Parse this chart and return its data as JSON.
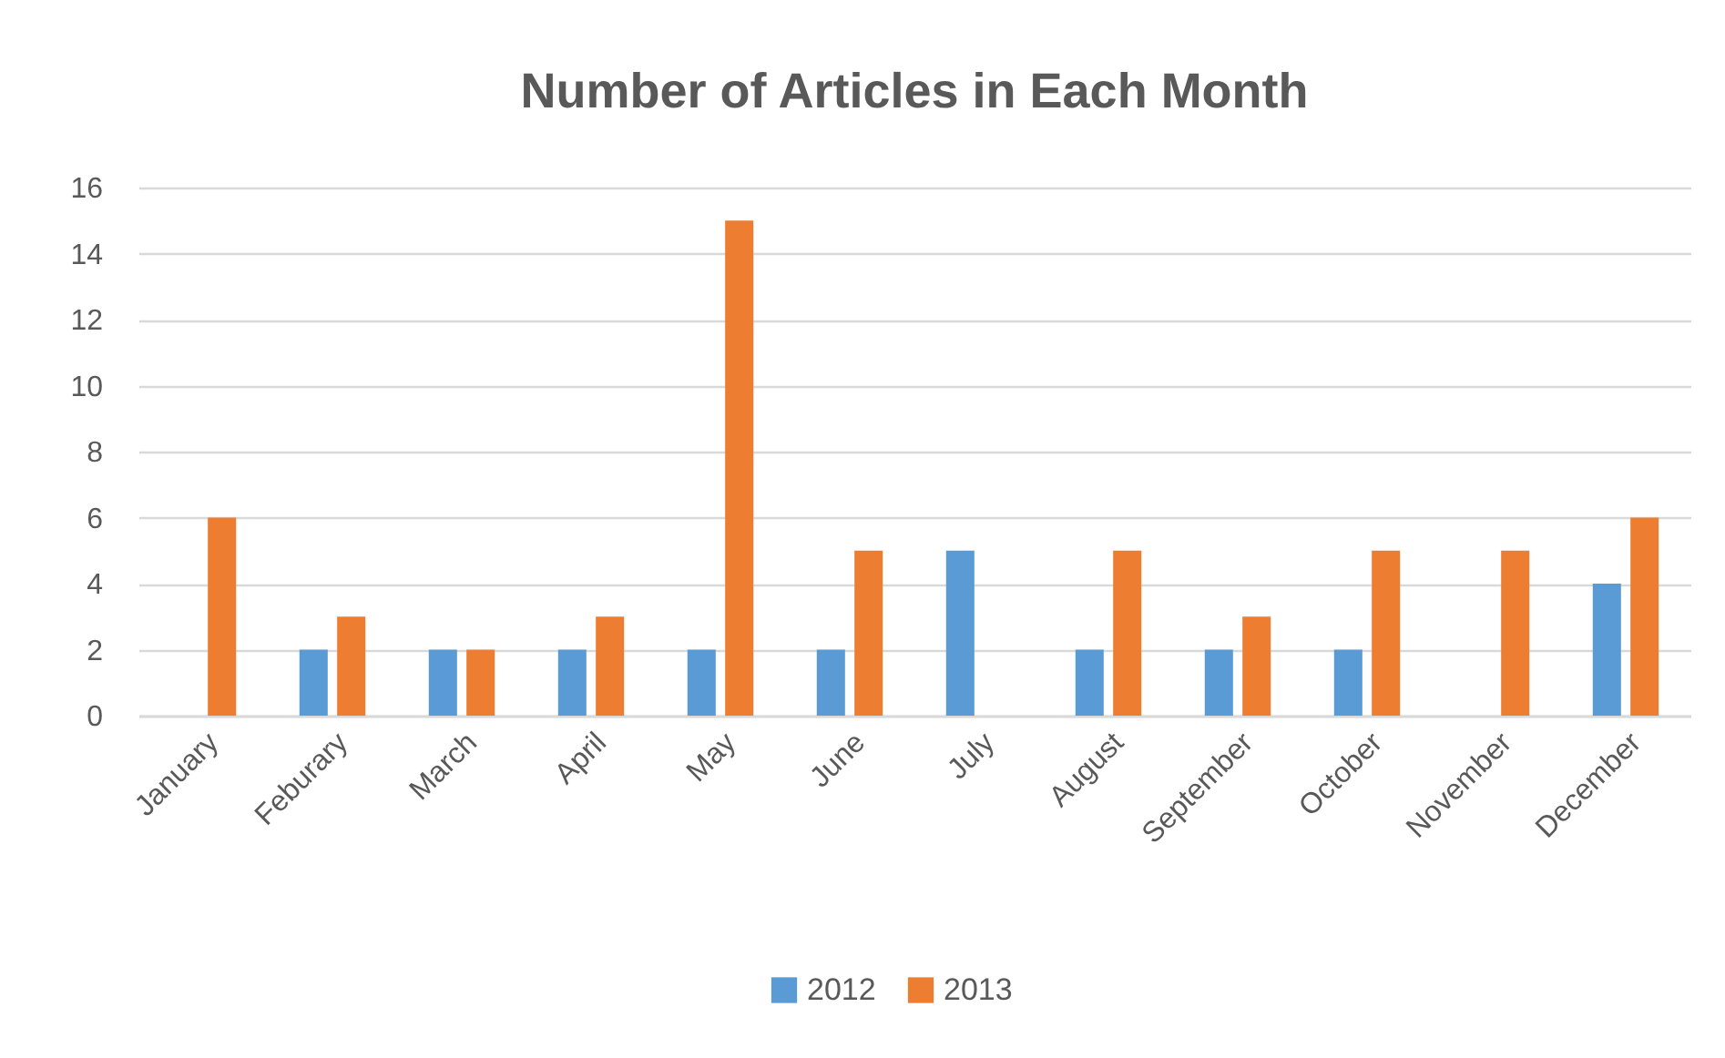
{
  "chart_data": {
    "type": "bar",
    "title": "Number of Articles in Each Month",
    "categories": [
      "January",
      "Feburary",
      "March",
      "April",
      "May",
      "June",
      "July",
      "August",
      "September",
      "October",
      "November",
      "December"
    ],
    "series": [
      {
        "name": "2012",
        "color": "#5b9bd5",
        "values": [
          null,
          2,
          2,
          2,
          2,
          2,
          5,
          2,
          2,
          2,
          null,
          4
        ]
      },
      {
        "name": "2013",
        "color": "#ed7d31",
        "values": [
          6,
          3,
          2,
          3,
          15,
          5,
          null,
          5,
          3,
          5,
          5,
          6
        ]
      }
    ],
    "ylim": [
      0,
      16
    ],
    "yticks": [
      0,
      2,
      4,
      6,
      8,
      10,
      12,
      14,
      16
    ],
    "grid": "y",
    "legend": "bottom"
  }
}
